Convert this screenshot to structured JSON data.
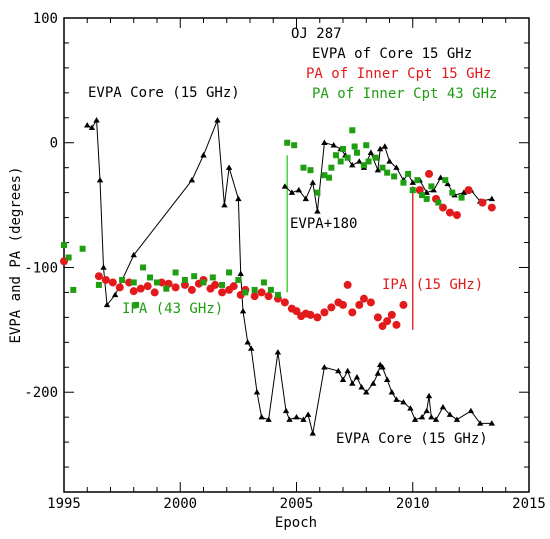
{
  "chart_data": {
    "type": "scatter",
    "title": "OJ 287",
    "xlabel": "Epoch",
    "ylabel": "EVPA and PA (degrees)",
    "xlim": [
      1995,
      2015
    ],
    "ylim": [
      -280,
      100
    ],
    "grid": false,
    "legend_placement": "top-right",
    "x_ticks": [
      1995,
      2000,
      2005,
      2010,
      2015
    ],
    "y_ticks": [
      100,
      0,
      -100,
      -200
    ],
    "legend": [
      {
        "label": "EVPA of Core 15 GHz",
        "color": "#000000",
        "marker": "triangle"
      },
      {
        "label": "PA of Inner Cpt 15 GHz",
        "color": "#e31a1c",
        "marker": "circle"
      },
      {
        "label": "PA of Inner Cpt 43 GHz",
        "color": "#1f9e12",
        "marker": "square"
      }
    ],
    "annotations": [
      {
        "text": "EVPA Core (15 GHz)",
        "x": 1996.2,
        "y": 35,
        "color": "#000000"
      },
      {
        "text": "EVPA Core (15 GHz)",
        "x": 2007.0,
        "y": -245,
        "color": "#000000"
      },
      {
        "text": "EVPA+180",
        "x": 2005.1,
        "y": -70,
        "color": "#000000"
      },
      {
        "text": "IPA (43 GHz)",
        "x": 1997.6,
        "y": -138,
        "color": "#1f9e12"
      },
      {
        "text": "IPA (15 GHz)",
        "x": 2009.1,
        "y": -118,
        "color": "#e31a1c"
      }
    ],
    "vertical_lines": [
      {
        "x": 2004.6,
        "y1": -10,
        "y2": -120,
        "color": "#4ad13a"
      },
      {
        "x": 2010.0,
        "y1": -35,
        "y2": -150,
        "color": "#d83232"
      }
    ],
    "series": [
      {
        "name": "EVPA of Core 15 GHz",
        "color": "#000000",
        "marker": "triangle",
        "segments": [
          [
            [
              1996.0,
              14
            ],
            [
              1996.2,
              12
            ],
            [
              1996.4,
              18
            ],
            [
              1996.55,
              -30
            ],
            [
              1996.7,
              -100
            ],
            [
              1996.85,
              -130
            ],
            [
              1997.2,
              -122
            ],
            [
              1998.0,
              -90
            ],
            [
              2000.5,
              -30
            ],
            [
              2001.0,
              -10
            ],
            [
              2001.6,
              18
            ],
            [
              2001.9,
              -50
            ],
            [
              2002.1,
              -20
            ],
            [
              2002.5,
              -45
            ],
            [
              2002.6,
              -105
            ],
            [
              2002.7,
              -135
            ],
            [
              2002.9,
              -160
            ],
            [
              2003.05,
              -165
            ],
            [
              2003.3,
              -200
            ],
            [
              2003.5,
              -220
            ],
            [
              2003.8,
              -222
            ],
            [
              2004.2,
              -168
            ],
            [
              2004.55,
              -215
            ],
            [
              2004.7,
              -222
            ],
            [
              2005.0,
              -220
            ],
            [
              2005.3,
              -222
            ],
            [
              2005.5,
              -218
            ],
            [
              2005.7,
              -233
            ],
            [
              2006.2,
              -180
            ],
            [
              2006.8,
              -183
            ],
            [
              2007.0,
              -190
            ],
            [
              2007.2,
              -183
            ],
            [
              2007.4,
              -193
            ],
            [
              2007.6,
              -188
            ],
            [
              2007.8,
              -196
            ],
            [
              2008.0,
              -200
            ],
            [
              2008.3,
              -193
            ],
            [
              2008.5,
              -185
            ],
            [
              2008.6,
              -178
            ],
            [
              2008.7,
              -180
            ],
            [
              2008.9,
              -190
            ],
            [
              2009.1,
              -200
            ],
            [
              2009.3,
              -206
            ],
            [
              2009.6,
              -208
            ],
            [
              2009.9,
              -213
            ],
            [
              2010.1,
              -222
            ],
            [
              2010.4,
              -220
            ],
            [
              2010.6,
              -215
            ],
            [
              2010.7,
              -203
            ],
            [
              2010.8,
              -220
            ],
            [
              2011.0,
              -222
            ],
            [
              2011.3,
              -212
            ],
            [
              2011.6,
              -218
            ],
            [
              2011.9,
              -222
            ],
            [
              2012.5,
              -215
            ],
            [
              2012.9,
              -225
            ],
            [
              2013.4,
              -225
            ]
          ],
          [
            [
              2004.5,
              -35
            ],
            [
              2004.8,
              -40
            ],
            [
              2005.1,
              -38
            ],
            [
              2005.4,
              -45
            ],
            [
              2005.7,
              -32
            ],
            [
              2005.9,
              -55
            ],
            [
              2006.2,
              0
            ],
            [
              2006.6,
              -2
            ],
            [
              2006.9,
              -5
            ],
            [
              2007.1,
              -10
            ],
            [
              2007.4,
              -18
            ],
            [
              2007.7,
              -15
            ],
            [
              2007.9,
              -20
            ],
            [
              2008.2,
              -8
            ],
            [
              2008.5,
              -22
            ],
            [
              2008.6,
              -5
            ],
            [
              2008.8,
              -3
            ],
            [
              2009.0,
              -15
            ],
            [
              2009.3,
              -20
            ],
            [
              2009.6,
              -30
            ],
            [
              2009.8,
              -25
            ],
            [
              2010.0,
              -32
            ],
            [
              2010.3,
              -30
            ],
            [
              2010.6,
              -40
            ],
            [
              2010.9,
              -38
            ],
            [
              2011.2,
              -28
            ],
            [
              2011.5,
              -33
            ],
            [
              2011.8,
              -42
            ],
            [
              2012.2,
              -40
            ],
            [
              2012.5,
              -38
            ],
            [
              2012.9,
              -47
            ],
            [
              2013.4,
              -45
            ]
          ]
        ]
      },
      {
        "name": "PA of Inner Cpt 15 GHz",
        "color": "#e31a1c",
        "marker": "circle",
        "points": [
          [
            1995.0,
            -95
          ],
          [
            1996.5,
            -107
          ],
          [
            1996.8,
            -110
          ],
          [
            1997.1,
            -112
          ],
          [
            1997.4,
            -116
          ],
          [
            1997.8,
            -112
          ],
          [
            1998.0,
            -119
          ],
          [
            1998.3,
            -117
          ],
          [
            1998.6,
            -115
          ],
          [
            1998.9,
            -120
          ],
          [
            1999.2,
            -112
          ],
          [
            1999.5,
            -113
          ],
          [
            1999.8,
            -116
          ],
          [
            2000.2,
            -114
          ],
          [
            2000.5,
            -118
          ],
          [
            2000.8,
            -113
          ],
          [
            2001.0,
            -110
          ],
          [
            2001.3,
            -117
          ],
          [
            2001.5,
            -114
          ],
          [
            2001.8,
            -120
          ],
          [
            2002.1,
            -118
          ],
          [
            2002.3,
            -115
          ],
          [
            2002.6,
            -122
          ],
          [
            2002.8,
            -118
          ],
          [
            2003.2,
            -123
          ],
          [
            2003.5,
            -120
          ],
          [
            2003.8,
            -123
          ],
          [
            2004.2,
            -125
          ],
          [
            2004.5,
            -128
          ],
          [
            2004.8,
            -133
          ],
          [
            2005.0,
            -135
          ],
          [
            2005.2,
            -139
          ],
          [
            2005.4,
            -137
          ],
          [
            2005.6,
            -138
          ],
          [
            2005.9,
            -140
          ],
          [
            2006.2,
            -136
          ],
          [
            2006.5,
            -132
          ],
          [
            2006.8,
            -128
          ],
          [
            2007.0,
            -130
          ],
          [
            2007.2,
            -114
          ],
          [
            2007.4,
            -136
          ],
          [
            2007.7,
            -130
          ],
          [
            2007.9,
            -125
          ],
          [
            2008.2,
            -128
          ],
          [
            2008.5,
            -140
          ],
          [
            2008.7,
            -147
          ],
          [
            2008.9,
            -143
          ],
          [
            2009.1,
            -138
          ],
          [
            2009.3,
            -146
          ],
          [
            2009.6,
            -130
          ],
          [
            2010.3,
            -38
          ],
          [
            2010.7,
            -25
          ],
          [
            2011.0,
            -45
          ],
          [
            2011.3,
            -52
          ],
          [
            2011.6,
            -56
          ],
          [
            2011.9,
            -58
          ],
          [
            2012.4,
            -38
          ],
          [
            2013.0,
            -48
          ],
          [
            2013.4,
            -52
          ]
        ]
      },
      {
        "name": "PA of Inner Cpt 43 GHz",
        "color": "#1f9e12",
        "marker": "square",
        "points": [
          [
            1995.0,
            -82
          ],
          [
            1995.2,
            -92
          ],
          [
            1995.4,
            -118
          ],
          [
            1995.8,
            -85
          ],
          [
            1996.5,
            -114
          ],
          [
            1997.5,
            -110
          ],
          [
            1998.0,
            -112
          ],
          [
            1998.1,
            -130
          ],
          [
            1998.4,
            -100
          ],
          [
            1998.7,
            -108
          ],
          [
            1999.0,
            -112
          ],
          [
            1999.4,
            -117
          ],
          [
            1999.8,
            -104
          ],
          [
            2000.2,
            -110
          ],
          [
            2000.6,
            -107
          ],
          [
            2001.0,
            -112
          ],
          [
            2001.4,
            -108
          ],
          [
            2001.8,
            -114
          ],
          [
            2002.1,
            -104
          ],
          [
            2002.5,
            -110
          ],
          [
            2002.8,
            -120
          ],
          [
            2003.2,
            -118
          ],
          [
            2003.6,
            -112
          ],
          [
            2003.9,
            -118
          ],
          [
            2004.2,
            -122
          ],
          [
            2004.6,
            0
          ],
          [
            2004.9,
            -2
          ],
          [
            2005.3,
            -20
          ],
          [
            2005.6,
            -22
          ],
          [
            2005.9,
            -40
          ],
          [
            2006.2,
            -26
          ],
          [
            2006.5,
            -20
          ],
          [
            2006.7,
            -10
          ],
          [
            2006.9,
            -15
          ],
          [
            2007.0,
            -5
          ],
          [
            2007.2,
            -12
          ],
          [
            2007.4,
            10
          ],
          [
            2007.6,
            -8
          ],
          [
            2007.9,
            -18
          ],
          [
            2008.1,
            -15
          ],
          [
            2008.4,
            -12
          ],
          [
            2008.7,
            -20
          ],
          [
            2008.9,
            -24
          ],
          [
            2009.2,
            -27
          ],
          [
            2009.6,
            -32
          ],
          [
            2009.8,
            -25
          ],
          [
            2010.0,
            -38
          ],
          [
            2010.2,
            -30
          ],
          [
            2010.4,
            -42
          ],
          [
            2010.6,
            -45
          ],
          [
            2010.8,
            -35
          ],
          [
            2011.1,
            -48
          ],
          [
            2011.4,
            -30
          ],
          [
            2011.7,
            -40
          ],
          [
            2012.1,
            -44
          ],
          [
            2008.0,
            -2
          ],
          [
            2007.5,
            -3
          ],
          [
            2006.4,
            -28
          ]
        ]
      }
    ]
  }
}
